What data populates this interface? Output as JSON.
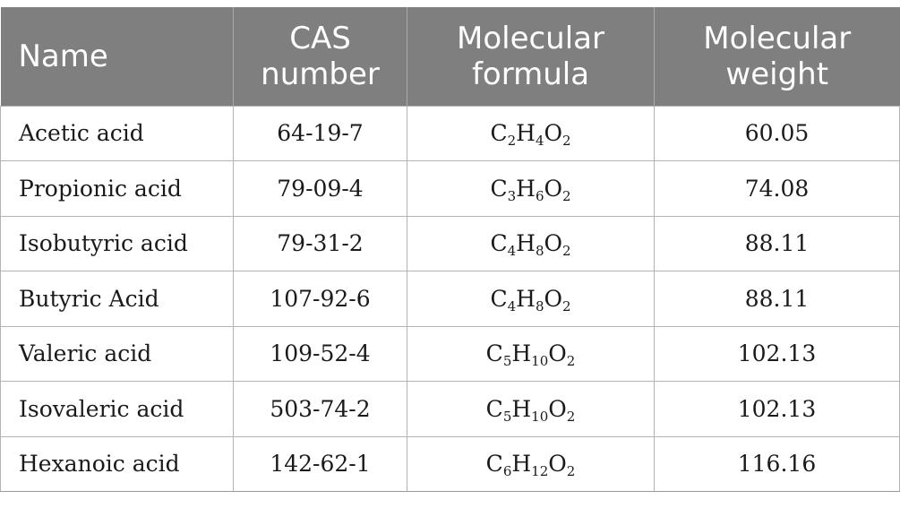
{
  "table": {
    "headers": {
      "name": "Name",
      "cas": [
        "CAS",
        "number"
      ],
      "formula": [
        "Molecular",
        "formula"
      ],
      "weight": [
        "Molecular",
        "weight"
      ]
    },
    "rows": [
      {
        "name": "Acetic acid",
        "cas": "64-19-7",
        "formula": [
          [
            "C",
            "2"
          ],
          [
            "H",
            "4"
          ],
          [
            "O",
            "2"
          ]
        ],
        "weight": "60.05"
      },
      {
        "name": "Propionic acid",
        "cas": "79-09-4",
        "formula": [
          [
            "C",
            "3"
          ],
          [
            "H",
            "6"
          ],
          [
            "O",
            "2"
          ]
        ],
        "weight": "74.08"
      },
      {
        "name": "Isobutyric acid",
        "cas": "79-31-2",
        "formula": [
          [
            "C",
            "4"
          ],
          [
            "H",
            "8"
          ],
          [
            "O",
            "2"
          ]
        ],
        "weight": "88.11"
      },
      {
        "name": "Butyric Acid",
        "cas": "107-92-6",
        "formula": [
          [
            "C",
            "4"
          ],
          [
            "H",
            "8"
          ],
          [
            "O",
            "2"
          ]
        ],
        "weight": "88.11"
      },
      {
        "name": "Valeric acid",
        "cas": "109-52-4",
        "formula": [
          [
            "C",
            "5"
          ],
          [
            "H",
            "10"
          ],
          [
            "O",
            "2"
          ]
        ],
        "weight": "102.13"
      },
      {
        "name": "Isovaleric acid",
        "cas": "503-74-2",
        "formula": [
          [
            "C",
            "5"
          ],
          [
            "H",
            "10"
          ],
          [
            "O",
            "2"
          ]
        ],
        "weight": "102.13"
      },
      {
        "name": "Hexanoic acid",
        "cas": "142-62-1",
        "formula": [
          [
            "C",
            "6"
          ],
          [
            "H",
            "12"
          ],
          [
            "O",
            "2"
          ]
        ],
        "weight": "116.16"
      }
    ]
  },
  "colors": {
    "header_background": "#7f7f7f",
    "header_text": "#ffffff",
    "grid_lines": "#b3b3b3"
  }
}
